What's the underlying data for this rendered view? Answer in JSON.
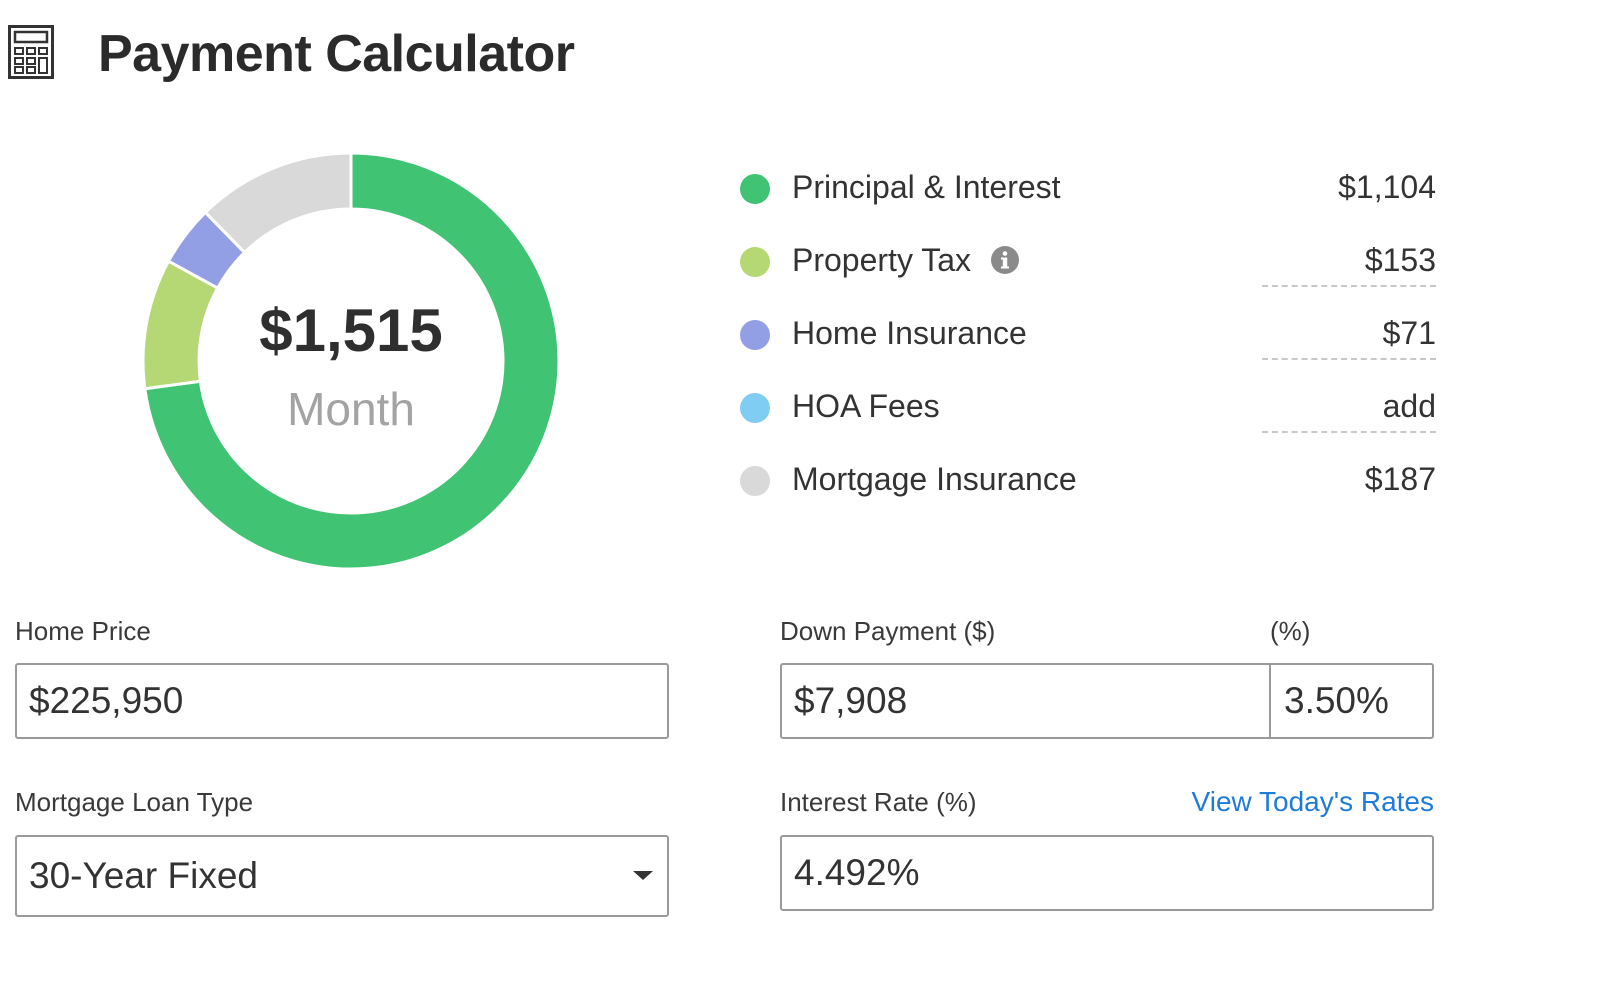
{
  "header": {
    "title": "Payment Calculator",
    "icon": "calculator-icon"
  },
  "summary": {
    "total": "$1,515",
    "period": "Month"
  },
  "breakdown": [
    {
      "label": "Principal & Interest",
      "value": "$1,104",
      "amount": 1104,
      "color": "#40c473",
      "has_info": false,
      "editable": false
    },
    {
      "label": "Property Tax",
      "value": "$153",
      "amount": 153,
      "color": "#b5d875",
      "has_info": true,
      "editable": true
    },
    {
      "label": "Home Insurance",
      "value": "$71",
      "amount": 71,
      "color": "#939fe5",
      "has_info": false,
      "editable": true
    },
    {
      "label": "HOA Fees",
      "value": "add",
      "amount": 0,
      "color": "#80cdf3",
      "has_info": false,
      "editable": true
    },
    {
      "label": "Mortgage Insurance",
      "value": "$187",
      "amount": 187,
      "color": "#d9d9d9",
      "has_info": false,
      "editable": false
    }
  ],
  "form": {
    "home_price": {
      "label": "Home Price",
      "value": "$225,950"
    },
    "down_payment": {
      "label": "Down Payment ($)",
      "value": "$7,908",
      "percent_label": "(%)",
      "percent_value": "3.50%"
    },
    "loan_type": {
      "label": "Mortgage Loan Type",
      "value": "30-Year Fixed"
    },
    "interest_rate": {
      "label": "Interest Rate (%)",
      "value": "4.492%",
      "link": "View Today's Rates"
    }
  },
  "colors": {
    "accent_link": "#1f7bd8",
    "border": "#9a9a9a"
  }
}
